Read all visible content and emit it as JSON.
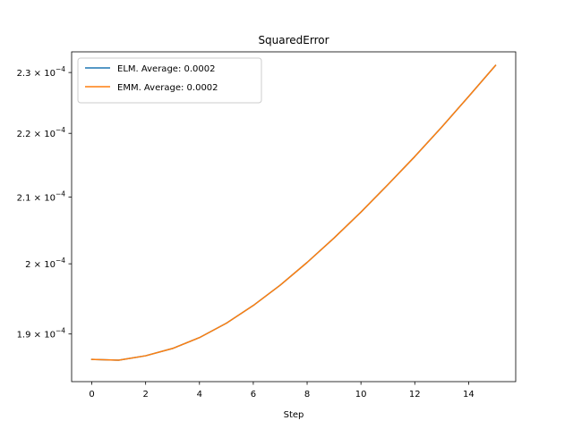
{
  "chart_data": {
    "type": "line",
    "title": "SquaredError",
    "xlabel": "Step",
    "ylabel": "",
    "xlim": [
      -0.75,
      15.75
    ],
    "ylim": [
      0.0001835,
      0.0002335
    ],
    "yscale": "log",
    "grid": false,
    "legend_position": "top-left",
    "x": [
      0,
      1,
      2,
      3,
      4,
      5,
      6,
      7,
      8,
      9,
      10,
      11,
      12,
      13,
      14,
      15
    ],
    "x_ticks": [
      0,
      2,
      4,
      6,
      8,
      10,
      12,
      14
    ],
    "y_ticks": [
      {
        "value": 0.00019,
        "mantissa": "1.9",
        "exponent": "−4"
      },
      {
        "value": 0.0002,
        "mantissa": "2",
        "exponent": "−4"
      },
      {
        "value": 0.00021,
        "mantissa": "2.1",
        "exponent": "−4"
      },
      {
        "value": 0.00022,
        "mantissa": "2.2",
        "exponent": "−4"
      },
      {
        "value": 0.00023,
        "mantissa": "2.3",
        "exponent": "−4"
      }
    ],
    "series": [
      {
        "name": "ELM. Average: 0.0002",
        "color": "#1f77b4",
        "values": [
          0.0001865,
          0.0001864,
          0.000187,
          0.000188,
          0.0001895,
          0.0001915,
          0.000194,
          0.0001969,
          0.0002002,
          0.0002038,
          0.0002077,
          0.0002119,
          0.0002163,
          0.000221,
          0.000226,
          0.0002312
        ]
      },
      {
        "name": "EMM. Average: 0.0002",
        "color": "#ff7f0e",
        "values": [
          0.0001865,
          0.0001864,
          0.000187,
          0.000188,
          0.0001895,
          0.0001915,
          0.000194,
          0.0001969,
          0.0002002,
          0.0002038,
          0.0002077,
          0.0002119,
          0.0002163,
          0.000221,
          0.000226,
          0.0002312
        ]
      }
    ]
  }
}
